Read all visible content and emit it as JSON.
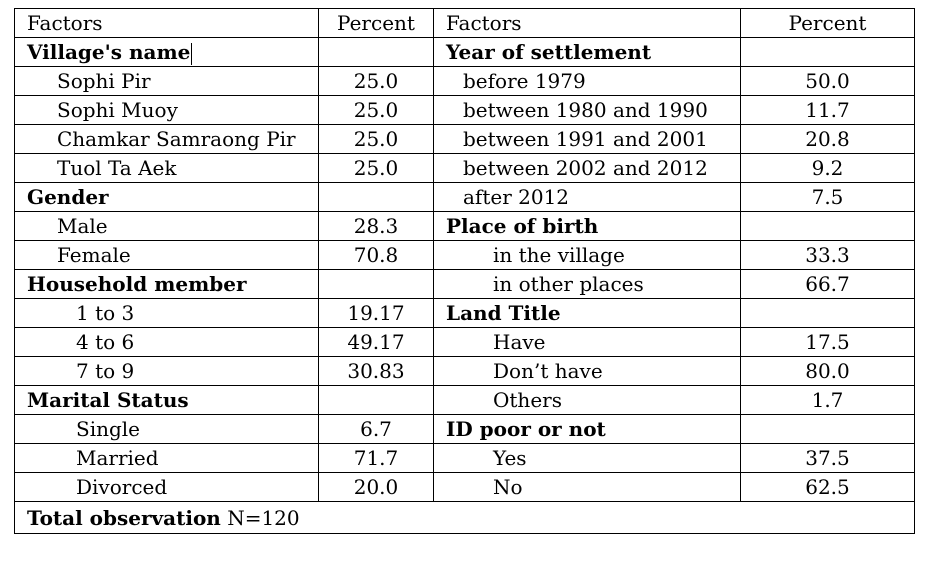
{
  "header": {
    "factors": "Factors",
    "percent": "Percent"
  },
  "rows": [
    {
      "l": {
        "label": "Village's name",
        "type": "h"
      },
      "r": {
        "label": "Year of settlement",
        "type": "h"
      }
    },
    {
      "l": {
        "label": "Sophi Pir",
        "value": "25.0",
        "type": "i1"
      },
      "r": {
        "label": "before 1979",
        "value": "50.0",
        "type": "r1"
      }
    },
    {
      "l": {
        "label": "Sophi Muoy",
        "value": "25.0",
        "type": "i1"
      },
      "r": {
        "label": "between 1980 and 1990",
        "value": "11.7",
        "type": "r1"
      }
    },
    {
      "l": {
        "label": "Chamkar  Samraong Pir",
        "value": "25.0",
        "type": "i1"
      },
      "r": {
        "label": "between 1991 and 2001",
        "value": "20.8",
        "type": "r1"
      }
    },
    {
      "l": {
        "label": "Tuol Ta Aek",
        "value": "25.0",
        "type": "i1"
      },
      "r": {
        "label": "between 2002 and 2012",
        "value": "9.2",
        "type": "r1"
      }
    },
    {
      "l": {
        "label": "Gender",
        "type": "h"
      },
      "r": {
        "label": "after 2012",
        "value": "7.5",
        "type": "r1"
      }
    },
    {
      "l": {
        "label": "Male",
        "value": "28.3",
        "type": "i1"
      },
      "r": {
        "label": "Place of birth",
        "type": "h"
      }
    },
    {
      "l": {
        "label": "Female",
        "value": "70.8",
        "type": "i1"
      },
      "r": {
        "label": "in the village",
        "value": "33.3",
        "type": "r2"
      }
    },
    {
      "l": {
        "label": "Household member",
        "type": "h"
      },
      "r": {
        "label": "in other places",
        "value": "66.7",
        "type": "r2"
      }
    },
    {
      "l": {
        "label": "1 to 3",
        "value": "19.17",
        "type": "i2"
      },
      "r": {
        "label": "Land Title",
        "type": "h"
      }
    },
    {
      "l": {
        "label": "4 to 6",
        "value": "49.17",
        "type": "i2"
      },
      "r": {
        "label": "Have",
        "value": "17.5",
        "type": "r2"
      }
    },
    {
      "l": {
        "label": "7 to 9",
        "value": "30.83",
        "type": "i2"
      },
      "r": {
        "label": "Don’t have",
        "value": "80.0",
        "type": "r2"
      }
    },
    {
      "l": {
        "label": "Marital Status",
        "type": "h"
      },
      "r": {
        "label": "Others",
        "value": "1.7",
        "type": "r2"
      }
    },
    {
      "l": {
        "label": "Single",
        "value": "6.7",
        "type": "i2"
      },
      "r": {
        "label": "ID poor or not",
        "type": "h"
      }
    },
    {
      "l": {
        "label": "Married",
        "value": "71.7",
        "type": "i2"
      },
      "r": {
        "label": "Yes",
        "value": "37.5",
        "type": "r2"
      }
    },
    {
      "l": {
        "label": "Divorced",
        "value": "20.0",
        "type": "i2"
      },
      "r": {
        "label": "No",
        "value": "62.5",
        "type": "r2"
      }
    }
  ],
  "footer": {
    "label": "Total observation",
    "value": "N=120"
  }
}
